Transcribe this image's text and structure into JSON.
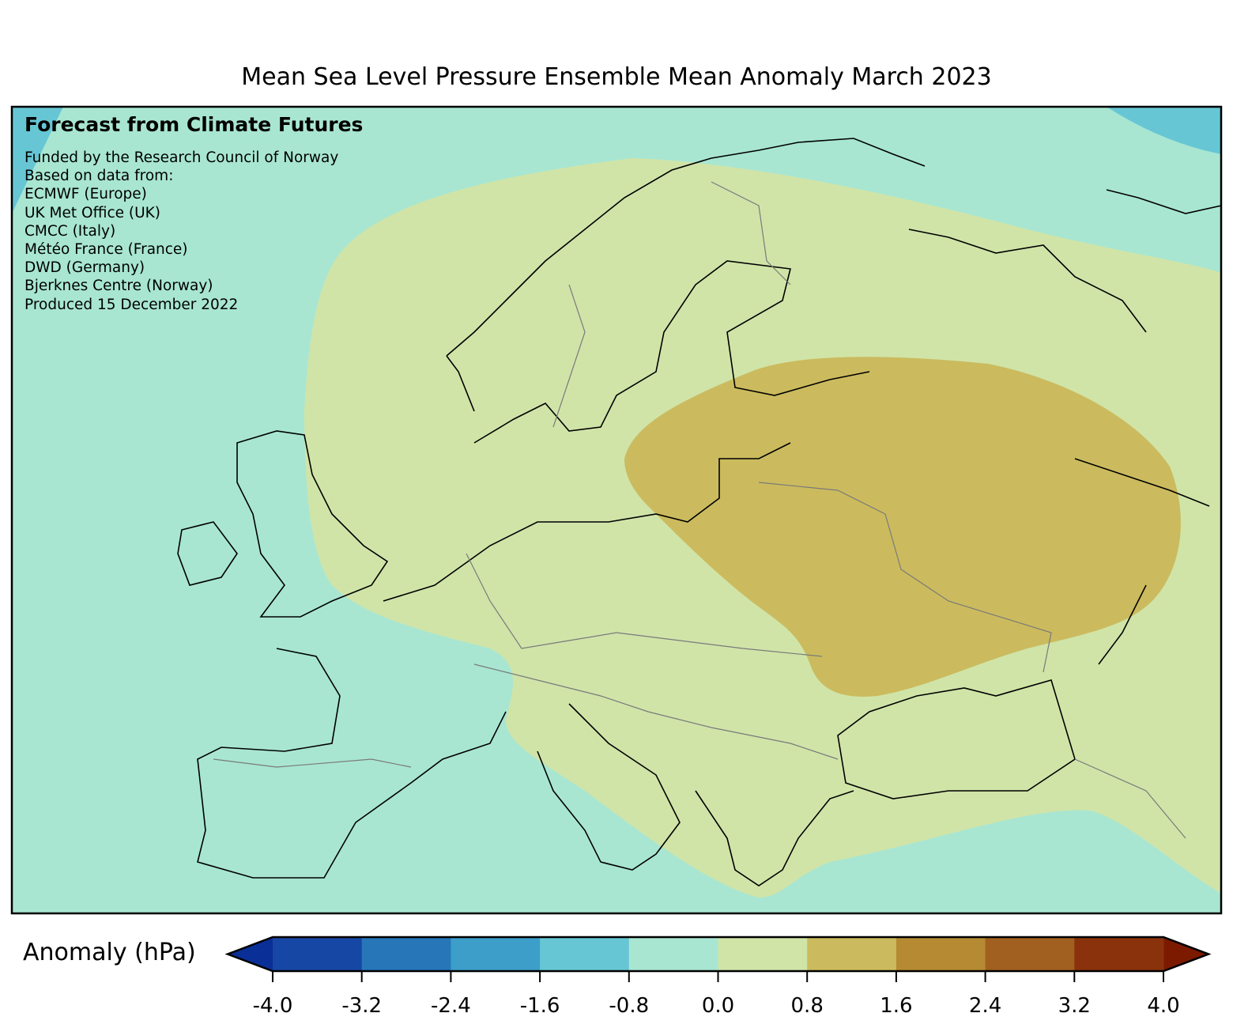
{
  "title": "Mean Sea Level Pressure Ensemble Mean Anomaly March 2023",
  "credits": {
    "heading": "Forecast from Climate Futures",
    "lines": [
      "Funded by the Research Council of Norway",
      "Based on data from:",
      "ECMWF (Europe)",
      "UK Met Office (UK)",
      "CMCC (Italy)",
      "Météo France (France)",
      "DWD (Germany)",
      "Bjerknes Centre (Norway)",
      "Produced 15 December 2022"
    ]
  },
  "chart_data": {
    "type": "heatmap",
    "title": "Mean Sea Level Pressure Ensemble Mean Anomaly March 2023",
    "colorbar": {
      "label": "Anomaly (hPa)",
      "levels": [
        -4.0,
        -3.2,
        -2.4,
        -1.6,
        -0.8,
        0.0,
        0.8,
        1.6,
        2.4,
        3.2,
        4.0
      ],
      "tick_labels": [
        "-4.0",
        "-3.2",
        "-2.4",
        "-1.6",
        "-0.8",
        "0.0",
        "0.8",
        "1.6",
        "2.4",
        "3.2",
        "4.0"
      ],
      "colors": [
        "#1747a4",
        "#2676b8",
        "#3c9ec9",
        "#67c6d4",
        "#a8e6d2",
        "#d0e4a8",
        "#cbbb5e",
        "#b58a32",
        "#a16020",
        "#8a320c"
      ],
      "under_color": "#0a2f96",
      "over_color": "#7c1a00",
      "extend": "both"
    },
    "regions": [
      {
        "name": "background",
        "range": [
          -0.8,
          0.0
        ]
      },
      {
        "name": "northwest-corner",
        "range": [
          -1.6,
          -0.8
        ]
      },
      {
        "name": "northeast-corner",
        "range": [
          -1.6,
          -0.8
        ]
      },
      {
        "name": "central-europe",
        "range": [
          0.0,
          0.8
        ]
      },
      {
        "name": "eastern-europe-high",
        "range": [
          0.8,
          1.6
        ]
      }
    ]
  }
}
